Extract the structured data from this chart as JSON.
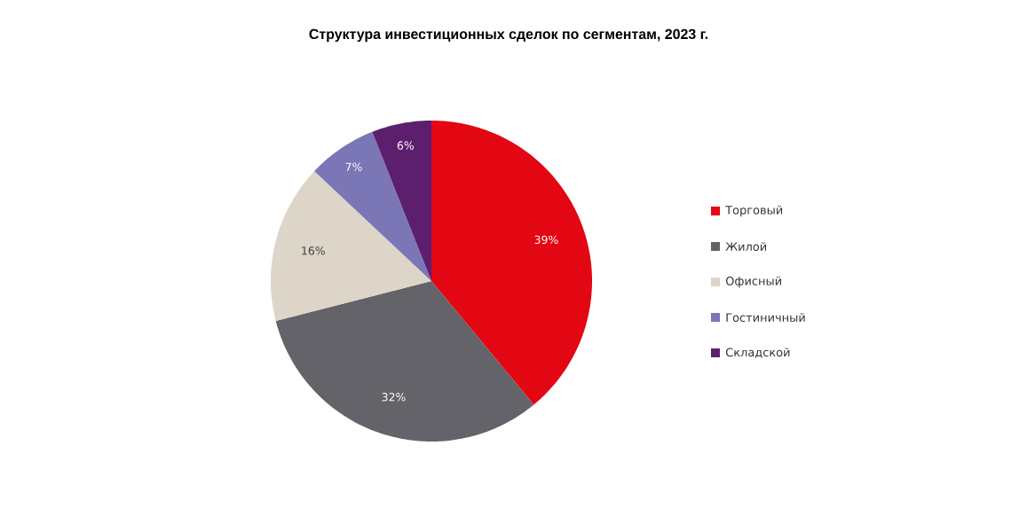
{
  "chart_data": {
    "type": "pie",
    "title": "Структура инвестиционных сделок по сегментам, 2023 г.",
    "categories": [
      "Торговый",
      "Жилой",
      "Офисный",
      "Гостиничный",
      "Складской"
    ],
    "values": [
      39,
      32,
      16,
      7,
      6
    ],
    "colors": [
      "#e30613",
      "#636369",
      "#ddd5c8",
      "#7b76b6",
      "#5c1f6e"
    ],
    "value_labels": [
      "39%",
      "32%",
      "16%",
      "7%",
      "6%"
    ],
    "legend": "right"
  }
}
